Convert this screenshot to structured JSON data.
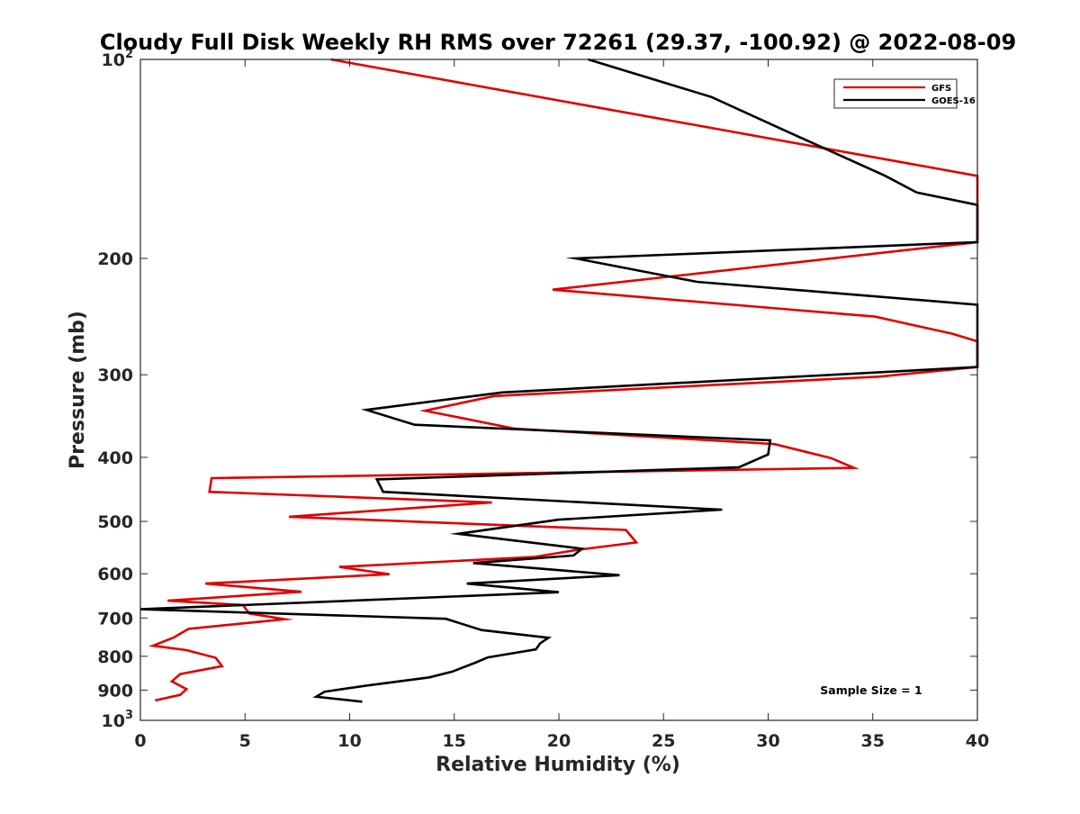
{
  "chart_data": {
    "type": "line",
    "title": "Cloudy Full Disk Weekly RH RMS over 72261 (29.37, -100.92) @ 2022-08-09",
    "xlabel": "Relative Humidity (%)",
    "ylabel": "Pressure (mb)",
    "xlim": [
      0,
      40
    ],
    "ylim": [
      100,
      1000
    ],
    "yscale": "log",
    "yreversed": true,
    "xticks": [
      0,
      5,
      10,
      15,
      20,
      25,
      30,
      35,
      40
    ],
    "xtick_labels": [
      "0",
      "5",
      "10",
      "15",
      "20",
      "25",
      "30",
      "35",
      "40"
    ],
    "yticks": [
      100,
      200,
      300,
      400,
      500,
      600,
      700,
      800,
      900,
      1000
    ],
    "ytick_labels": [
      {
        "base": "10",
        "exp": "2"
      },
      {
        "base": "200",
        "exp": ""
      },
      {
        "base": "300",
        "exp": ""
      },
      {
        "base": "400",
        "exp": ""
      },
      {
        "base": "500",
        "exp": ""
      },
      {
        "base": "600",
        "exp": ""
      },
      {
        "base": "700",
        "exp": ""
      },
      {
        "base": "800",
        "exp": ""
      },
      {
        "base": "900",
        "exp": ""
      },
      {
        "base": "10",
        "exp": "3"
      }
    ],
    "legend_position": "top-right",
    "annotation": "Sample Size = 1",
    "series": [
      {
        "name": "GFS",
        "color": "#e00000",
        "points": [
          [
            9.1,
            100
          ],
          [
            40,
            150
          ],
          [
            40,
            189
          ],
          [
            19.7,
            223
          ],
          [
            35.1,
            245
          ],
          [
            38.8,
            260
          ],
          [
            40,
            267
          ],
          [
            40,
            292
          ],
          [
            35.3,
            302
          ],
          [
            16.9,
            323
          ],
          [
            13.6,
            340
          ],
          [
            17.9,
            362
          ],
          [
            30.3,
            382
          ],
          [
            33.0,
            401
          ],
          [
            34.1,
            415
          ],
          [
            3.4,
            430
          ],
          [
            3.3,
            451
          ],
          [
            16.8,
            468
          ],
          [
            7.1,
            492
          ],
          [
            23.2,
            515
          ],
          [
            23.7,
            538
          ],
          [
            20.9,
            552
          ],
          [
            18.8,
            566
          ],
          [
            9.5,
            586
          ],
          [
            11.9,
            601
          ],
          [
            3.1,
            621
          ],
          [
            7.7,
            639
          ],
          [
            1.3,
            659
          ],
          [
            4.9,
            669
          ],
          [
            5.2,
            689
          ],
          [
            6.9,
            703
          ],
          [
            2.3,
            727
          ],
          [
            1.6,
            749
          ],
          [
            0.6,
            771
          ],
          [
            2.2,
            783
          ],
          [
            3.6,
            804
          ],
          [
            3.9,
            828
          ],
          [
            1.9,
            851
          ],
          [
            1.5,
            873
          ],
          [
            2.2,
            897
          ],
          [
            1.9,
            915
          ],
          [
            0.7,
            933
          ]
        ]
      },
      {
        "name": "GOES-16",
        "color": "#000000",
        "points": [
          [
            21.4,
            100
          ],
          [
            27.3,
            114
          ],
          [
            30.3,
            126
          ],
          [
            35.6,
            150
          ],
          [
            37.1,
            159
          ],
          [
            40,
            166
          ],
          [
            40,
            189
          ],
          [
            20.8,
            200
          ],
          [
            26.6,
            217
          ],
          [
            40,
            235
          ],
          [
            40,
            292
          ],
          [
            17.3,
            319
          ],
          [
            10.8,
            339
          ],
          [
            13.1,
            357
          ],
          [
            30.1,
            377
          ],
          [
            30.0,
            396
          ],
          [
            28.6,
            414
          ],
          [
            11.3,
            432
          ],
          [
            11.6,
            451
          ],
          [
            27.8,
            480
          ],
          [
            20.0,
            497
          ],
          [
            15.2,
            522
          ],
          [
            21.1,
            550
          ],
          [
            20.7,
            563
          ],
          [
            15.9,
            578
          ],
          [
            22.9,
            603
          ],
          [
            15.6,
            621
          ],
          [
            20.0,
            640
          ],
          [
            0,
            679
          ],
          [
            14.6,
            702
          ],
          [
            16.3,
            730
          ],
          [
            19.5,
            750
          ],
          [
            19.1,
            765
          ],
          [
            18.9,
            781
          ],
          [
            16.6,
            803
          ],
          [
            16.0,
            818
          ],
          [
            14.9,
            844
          ],
          [
            13.8,
            861
          ],
          [
            10.8,
            886
          ],
          [
            8.8,
            905
          ],
          [
            8.4,
            921
          ],
          [
            10.6,
            937
          ]
        ]
      }
    ]
  }
}
